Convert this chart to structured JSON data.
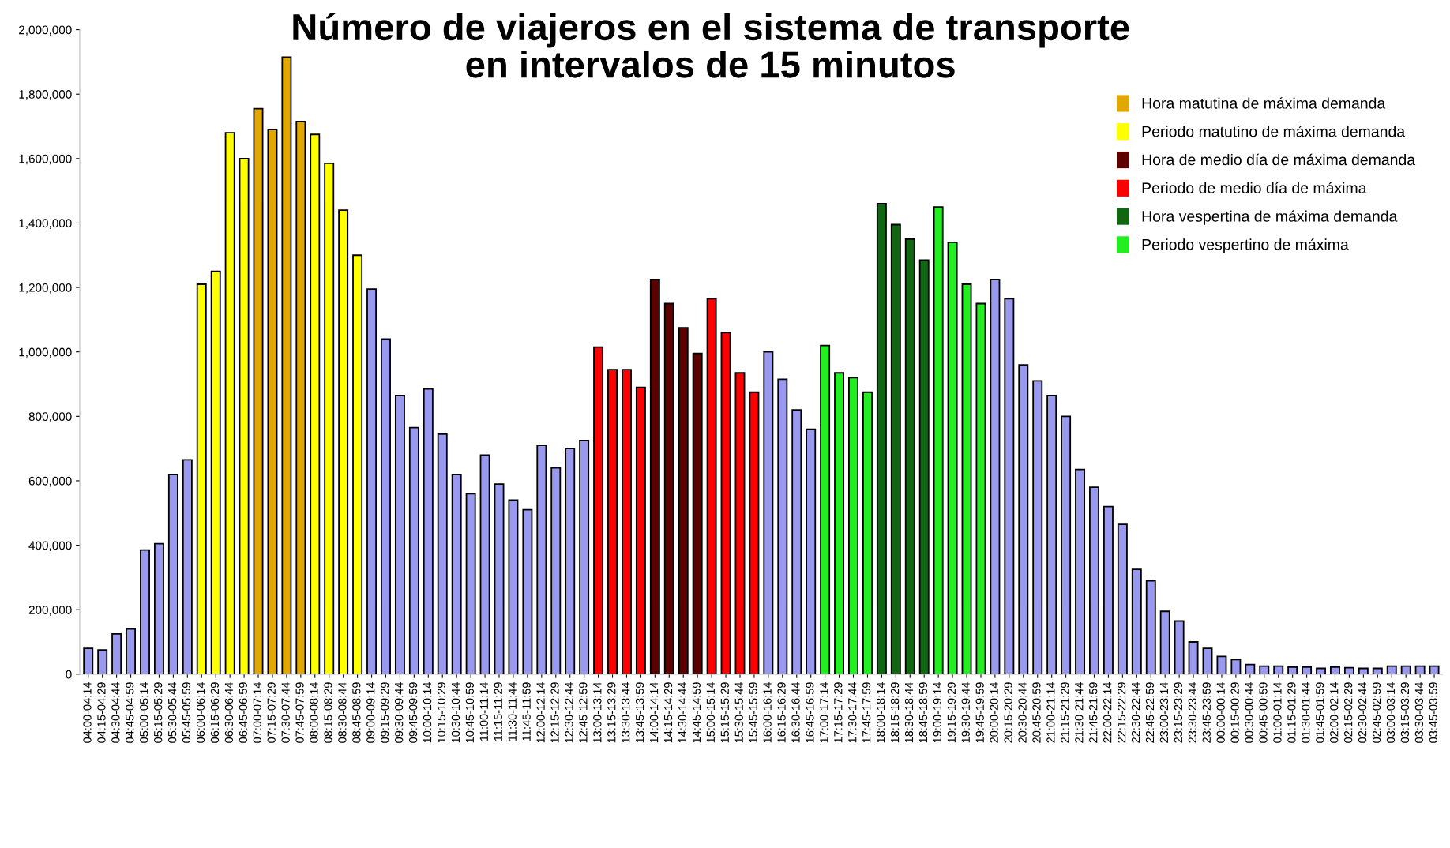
{
  "chart_data": {
    "type": "bar",
    "title": "Número de viajeros en el sistema de transporte\nen intervalos de 15 minutos",
    "categories": [
      "04:00-04:14",
      "04:15-04:29",
      "04:30-04:44",
      "04:45-04:59",
      "05:00-05:14",
      "05:15-05:29",
      "05:30-05:44",
      "05:45-05:59",
      "06:00-06:14",
      "06:15-06:29",
      "06:30-06:44",
      "06:45-06:59",
      "07:00-07:14",
      "07:15-07:29",
      "07:30-07:44",
      "07:45-07:59",
      "08:00-08:14",
      "08:15-08:29",
      "08:30-08:44",
      "08:45-08:59",
      "09:00-09:14",
      "09:15-09:29",
      "09:30-09:44",
      "09:45-09:59",
      "10:00-10:14",
      "10:15-10:29",
      "10:30-10:44",
      "10:45-10:59",
      "11:00-11:14",
      "11:15-11:29",
      "11:30-11:44",
      "11:45-11:59",
      "12:00-12:14",
      "12:15-12:29",
      "12:30-12:44",
      "12:45-12:59",
      "13:00-13:14",
      "13:15-13:29",
      "13:30-13:44",
      "13:45-13:59",
      "14:00-14:14",
      "14:15-14:29",
      "14:30-14:44",
      "14:45-14:59",
      "15:00-15:14",
      "15:15-15:29",
      "15:30-15:44",
      "15:45-15:59",
      "16:00-16:14",
      "16:15-16:29",
      "16:30-16:44",
      "16:45-16:59",
      "17:00-17:14",
      "17:15-17:29",
      "17:30-17:44",
      "17:45-17:59",
      "18:00-18:14",
      "18:15-18:29",
      "18:30-18:44",
      "18:45-18:59",
      "19:00-19:14",
      "19:15-19:29",
      "19:30-19:44",
      "19:45-19:59",
      "20:00-20:14",
      "20:15-20:29",
      "20:30-20:44",
      "20:45-20:59",
      "21:00-21:14",
      "21:15-21:29",
      "21:30-21:44",
      "21:45-21:59",
      "22:00-22:14",
      "22:15-22:29",
      "22:30-22:44",
      "22:45-22:59",
      "23:00-23:14",
      "23:15-23:29",
      "23:30-23:44",
      "23:45-23:59",
      "00:00-00:14",
      "00:15-00:29",
      "00:30-00:44",
      "00:45-00:59",
      "01:00-01:14",
      "01:15-01:29",
      "01:30-01:44",
      "01:45-01:59",
      "02:00-02:14",
      "02:15-02:29",
      "02:30-02:44",
      "02:45-02:59",
      "03:00-03:14",
      "03:15-03:29",
      "03:30-03:44",
      "03:45-03:59"
    ],
    "series": [
      {
        "color": "#9999f0",
        "values": [
          80000,
          75000,
          125000,
          140000,
          385000,
          405000,
          620000,
          665000,
          null,
          null,
          null,
          null,
          null,
          null,
          null,
          null,
          null,
          null,
          null,
          null,
          1195000,
          1040000,
          865000,
          765000,
          885000,
          745000,
          620000,
          560000,
          680000,
          590000,
          540000,
          510000,
          710000,
          640000,
          700000,
          725000,
          null,
          null,
          null,
          null,
          null,
          null,
          null,
          null,
          null,
          null,
          null,
          null,
          1000000,
          915000,
          820000,
          760000,
          null,
          null,
          null,
          null,
          null,
          null,
          null,
          null,
          null,
          null,
          null,
          null,
          1225000,
          1165000,
          960000,
          910000,
          865000,
          800000,
          635000,
          580000,
          520000,
          465000,
          325000,
          290000,
          195000,
          165000,
          100000,
          80000,
          55000,
          45000,
          30000,
          25000,
          25000,
          22000,
          22000,
          18000,
          22000,
          20000,
          18000,
          18000,
          25000,
          25000,
          25000,
          25000
        ]
      },
      {
        "name": "Hora matutina de máxima demanda",
        "color": "#e0a800",
        "values": [
          null,
          null,
          null,
          null,
          null,
          null,
          null,
          null,
          null,
          null,
          null,
          null,
          1755000,
          1690000,
          1915000,
          1715000,
          null,
          null,
          null,
          null,
          null,
          null,
          null,
          null,
          null,
          null,
          null,
          null,
          null,
          null,
          null,
          null,
          null,
          null,
          null,
          null,
          null,
          null,
          null,
          null,
          null,
          null,
          null,
          null,
          null,
          null,
          null,
          null,
          null,
          null,
          null,
          null,
          null,
          null,
          null,
          null,
          null,
          null,
          null,
          null,
          null,
          null,
          null,
          null,
          null,
          null,
          null,
          null,
          null,
          null,
          null,
          null,
          null,
          null,
          null,
          null,
          null,
          null,
          null,
          null,
          null,
          null,
          null,
          null,
          null,
          null,
          null,
          null,
          null,
          null,
          null,
          null,
          null,
          null,
          null,
          null
        ]
      },
      {
        "name": "Periodo matutino de máxima demanda",
        "color": "#ffff00",
        "values": [
          null,
          null,
          null,
          null,
          null,
          null,
          null,
          null,
          1210000,
          1250000,
          1680000,
          1600000,
          null,
          null,
          null,
          null,
          1675000,
          1585000,
          1440000,
          1300000,
          null,
          null,
          null,
          null,
          null,
          null,
          null,
          null,
          null,
          null,
          null,
          null,
          null,
          null,
          null,
          null,
          null,
          null,
          null,
          null,
          null,
          null,
          null,
          null,
          null,
          null,
          null,
          null,
          null,
          null,
          null,
          null,
          null,
          null,
          null,
          null,
          null,
          null,
          null,
          null,
          null,
          null,
          null,
          null,
          null,
          null,
          null,
          null,
          null,
          null,
          null,
          null,
          null,
          null,
          null,
          null,
          null,
          null,
          null,
          null,
          null,
          null,
          null,
          null,
          null,
          null,
          null,
          null,
          null,
          null,
          null,
          null,
          null,
          null,
          null,
          null
        ]
      },
      {
        "name": "Hora de medio día de máxima demanda",
        "color": "#5c0000",
        "values": [
          null,
          null,
          null,
          null,
          null,
          null,
          null,
          null,
          null,
          null,
          null,
          null,
          null,
          null,
          null,
          null,
          null,
          null,
          null,
          null,
          null,
          null,
          null,
          null,
          null,
          null,
          null,
          null,
          null,
          null,
          null,
          null,
          null,
          null,
          null,
          null,
          null,
          null,
          null,
          null,
          1225000,
          1150000,
          1075000,
          995000,
          null,
          null,
          null,
          null,
          null,
          null,
          null,
          null,
          null,
          null,
          null,
          null,
          null,
          null,
          null,
          null,
          null,
          null,
          null,
          null,
          null,
          null,
          null,
          null,
          null,
          null,
          null,
          null,
          null,
          null,
          null,
          null,
          null,
          null,
          null,
          null,
          null,
          null,
          null,
          null,
          null,
          null,
          null,
          null,
          null,
          null,
          null,
          null,
          null,
          null,
          null,
          null
        ]
      },
      {
        "name": "Periodo de medio día de máxima",
        "color": "#ff0000",
        "values": [
          null,
          null,
          null,
          null,
          null,
          null,
          null,
          null,
          null,
          null,
          null,
          null,
          null,
          null,
          null,
          null,
          null,
          null,
          null,
          null,
          null,
          null,
          null,
          null,
          null,
          null,
          null,
          null,
          null,
          null,
          null,
          null,
          null,
          null,
          null,
          null,
          1015000,
          945000,
          945000,
          890000,
          null,
          null,
          null,
          null,
          1165000,
          1060000,
          935000,
          875000,
          null,
          null,
          null,
          null,
          null,
          null,
          null,
          null,
          null,
          null,
          null,
          null,
          null,
          null,
          null,
          null,
          null,
          null,
          null,
          null,
          null,
          null,
          null,
          null,
          null,
          null,
          null,
          null,
          null,
          null,
          null,
          null,
          null,
          null,
          null,
          null,
          null,
          null,
          null,
          null,
          null,
          null,
          null,
          null,
          null,
          null,
          null,
          null
        ]
      },
      {
        "name": "Hora vespertina de máxima demanda",
        "color": "#116611",
        "values": [
          null,
          null,
          null,
          null,
          null,
          null,
          null,
          null,
          null,
          null,
          null,
          null,
          null,
          null,
          null,
          null,
          null,
          null,
          null,
          null,
          null,
          null,
          null,
          null,
          null,
          null,
          null,
          null,
          null,
          null,
          null,
          null,
          null,
          null,
          null,
          null,
          null,
          null,
          null,
          null,
          null,
          null,
          null,
          null,
          null,
          null,
          null,
          null,
          null,
          null,
          null,
          null,
          null,
          null,
          null,
          null,
          1460000,
          1395000,
          1350000,
          1285000,
          null,
          null,
          null,
          null,
          null,
          null,
          null,
          null,
          null,
          null,
          null,
          null,
          null,
          null,
          null,
          null,
          null,
          null,
          null,
          null,
          null,
          null,
          null,
          null,
          null,
          null,
          null,
          null,
          null,
          null,
          null,
          null,
          null,
          null,
          null,
          null
        ]
      },
      {
        "name": "Periodo vespertino de máxima",
        "color": "#22ee22",
        "values": [
          null,
          null,
          null,
          null,
          null,
          null,
          null,
          null,
          null,
          null,
          null,
          null,
          null,
          null,
          null,
          null,
          null,
          null,
          null,
          null,
          null,
          null,
          null,
          null,
          null,
          null,
          null,
          null,
          null,
          null,
          null,
          null,
          null,
          null,
          null,
          null,
          null,
          null,
          null,
          null,
          null,
          null,
          null,
          null,
          null,
          null,
          null,
          null,
          null,
          null,
          null,
          null,
          1020000,
          935000,
          920000,
          875000,
          null,
          null,
          null,
          null,
          1450000,
          1340000,
          1210000,
          1150000,
          null,
          null,
          null,
          null,
          null,
          null,
          null,
          null,
          null,
          null,
          null,
          null,
          null,
          null,
          null,
          null,
          null,
          null,
          null,
          null,
          null,
          null,
          null,
          null,
          null,
          null,
          null,
          null,
          null,
          null,
          null,
          null
        ]
      }
    ],
    "ylim": [
      0,
      2000000
    ],
    "yticks": [
      {
        "value": 0,
        "label": "0"
      },
      {
        "value": 200000,
        "label": "200,000"
      },
      {
        "value": 400000,
        "label": "400,000"
      },
      {
        "value": 600000,
        "label": "600,000"
      },
      {
        "value": 800000,
        "label": "800,000"
      },
      {
        "value": 1000000,
        "label": "1,000,000"
      },
      {
        "value": 1200000,
        "label": "1,200,000"
      },
      {
        "value": 1400000,
        "label": "1,400,000"
      },
      {
        "value": 1600000,
        "label": "1,600,000"
      },
      {
        "value": 1800000,
        "label": "1,800,000"
      },
      {
        "value": 2000000,
        "label": "2,000,000"
      }
    ],
    "legend": "top right",
    "grid": false
  }
}
